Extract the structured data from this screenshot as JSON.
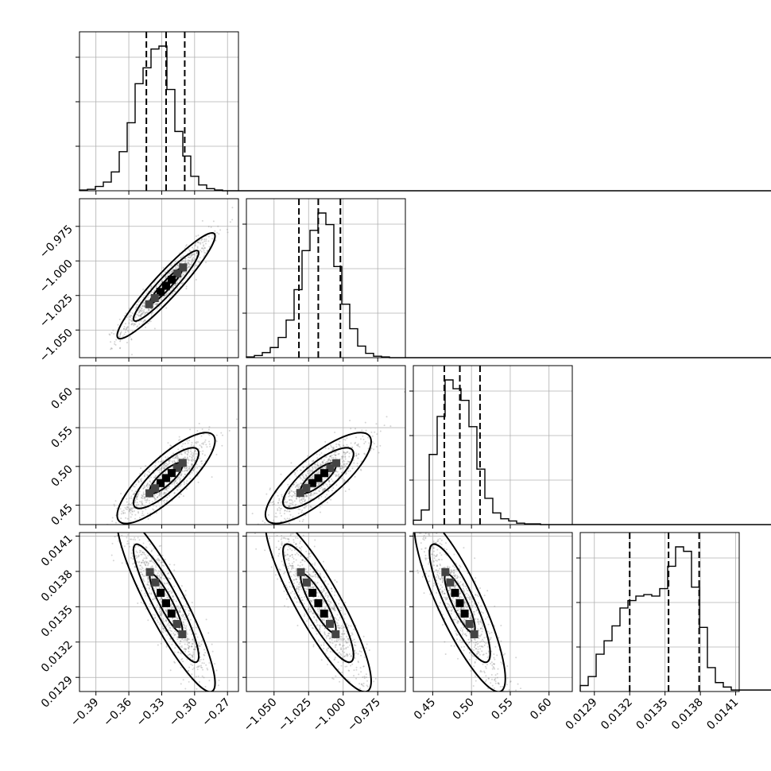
{
  "chart_data": {
    "type": "corner",
    "params": [
      {
        "range": [
          -0.405,
          -0.26
        ],
        "ticks": [
          -0.39,
          -0.36,
          -0.33,
          -0.3,
          -0.27
        ],
        "tick_labels": [
          "−0.39",
          "−0.36",
          "−0.33",
          "−0.30",
          "−0.27"
        ],
        "quantiles": [
          -0.344,
          -0.326,
          -0.309
        ],
        "hist_edges_start": -0.405,
        "hist_bin_width": 0.00725,
        "hist_counts": [
          0.005,
          0.01,
          0.03,
          0.06,
          0.13,
          0.27,
          0.47,
          0.74,
          0.85,
          0.98,
          1.0,
          0.7,
          0.41,
          0.24,
          0.1,
          0.04,
          0.015,
          0.005,
          0,
          0
        ]
      },
      {
        "range": [
          -1.07,
          -0.955
        ],
        "ticks": [
          -1.05,
          -1.025,
          -1.0,
          -0.975
        ],
        "tick_labels": [
          "−1.050",
          "−1.025",
          "−1.000",
          "−0.975"
        ],
        "quantiles": [
          -1.032,
          -1.018,
          -1.002
        ],
        "hist_edges_start": -1.07,
        "hist_bin_width": 0.00575,
        "hist_counts": [
          0.005,
          0.015,
          0.035,
          0.07,
          0.14,
          0.26,
          0.47,
          0.74,
          0.88,
          1.0,
          0.92,
          0.63,
          0.37,
          0.2,
          0.08,
          0.03,
          0.01,
          0.005,
          0,
          0
        ]
      },
      {
        "range": [
          0.425,
          0.63
        ],
        "ticks": [
          0.45,
          0.5,
          0.55,
          0.6
        ],
        "tick_labels": [
          "0.45",
          "0.50",
          "0.55",
          "0.60"
        ],
        "quantiles": [
          0.465,
          0.485,
          0.511
        ],
        "hist_edges_start": 0.425,
        "hist_bin_width": 0.01025,
        "hist_counts": [
          0.03,
          0.1,
          0.48,
          0.74,
          0.99,
          0.93,
          0.85,
          0.67,
          0.38,
          0.18,
          0.08,
          0.04,
          0.025,
          0.01,
          0.005,
          0.005,
          0,
          0,
          0,
          0
        ]
      },
      {
        "range": [
          0.01278,
          0.01413
        ],
        "ticks": [
          0.0129,
          0.0132,
          0.0135,
          0.0138,
          0.0141
        ],
        "tick_labels": [
          "0.0129",
          "0.0132",
          "0.0135",
          "0.0138",
          "0.0141"
        ],
        "quantiles": [
          0.0132,
          0.01353,
          0.01379
        ],
        "hist_edges_start": 0.01278,
        "hist_bin_width": 6.75e-05,
        "hist_counts": [
          0.04,
          0.1,
          0.25,
          0.34,
          0.44,
          0.56,
          0.61,
          0.64,
          0.65,
          0.64,
          0.69,
          0.84,
          0.97,
          0.94,
          0.7,
          0.43,
          0.16,
          0.06,
          0.03,
          0.01
        ]
      }
    ],
    "pairs": [
      {
        "row": 1,
        "col": 0,
        "rho": 0.94
      },
      {
        "row": 2,
        "col": 0,
        "rho": 0.82
      },
      {
        "row": 2,
        "col": 1,
        "rho": 0.8
      },
      {
        "row": 3,
        "col": 0,
        "rho": -0.9
      },
      {
        "row": 3,
        "col": 1,
        "rho": -0.88
      },
      {
        "row": 3,
        "col": 2,
        "rho": -0.85
      }
    ],
    "grid": true,
    "contour_levels": [
      0.5,
      1.0,
      1.5
    ]
  }
}
